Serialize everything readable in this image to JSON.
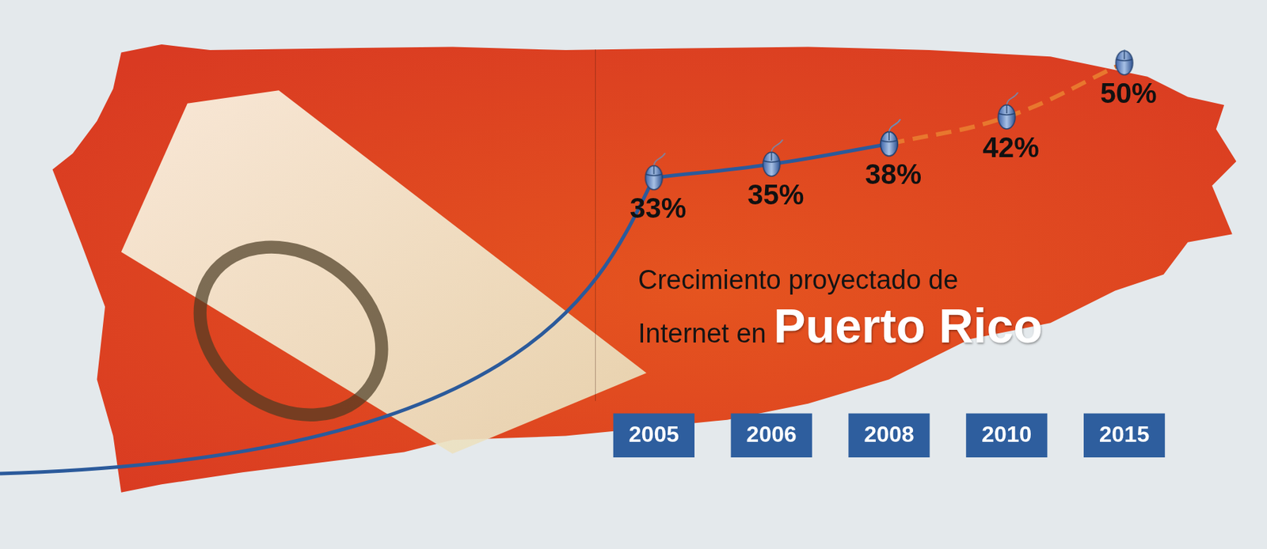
{
  "chart_data": {
    "type": "line",
    "title": [
      "Crecimiento proyectado de",
      "Internet en",
      "Puerto Rico"
    ],
    "categories": [
      "2005",
      "2006",
      "2008",
      "2010",
      "2015"
    ],
    "series": [
      {
        "color": "#2b5a9b",
        "line_style": "solid",
        "marker": "mouse",
        "values": [
          33,
          35,
          38,
          null,
          null
        ],
        "value_labels": [
          "33%",
          "35%",
          "38%",
          null,
          null
        ]
      },
      {
        "color": "#e8772e",
        "line_style": "dashed",
        "marker": "mouse",
        "values": [
          null,
          null,
          38,
          42,
          50
        ],
        "value_labels": [
          null,
          null,
          null,
          "42%",
          "50%"
        ]
      }
    ],
    "ylim": [
      0,
      52
    ],
    "tick_labels": "x",
    "grid": false,
    "data_labels": true
  }
}
